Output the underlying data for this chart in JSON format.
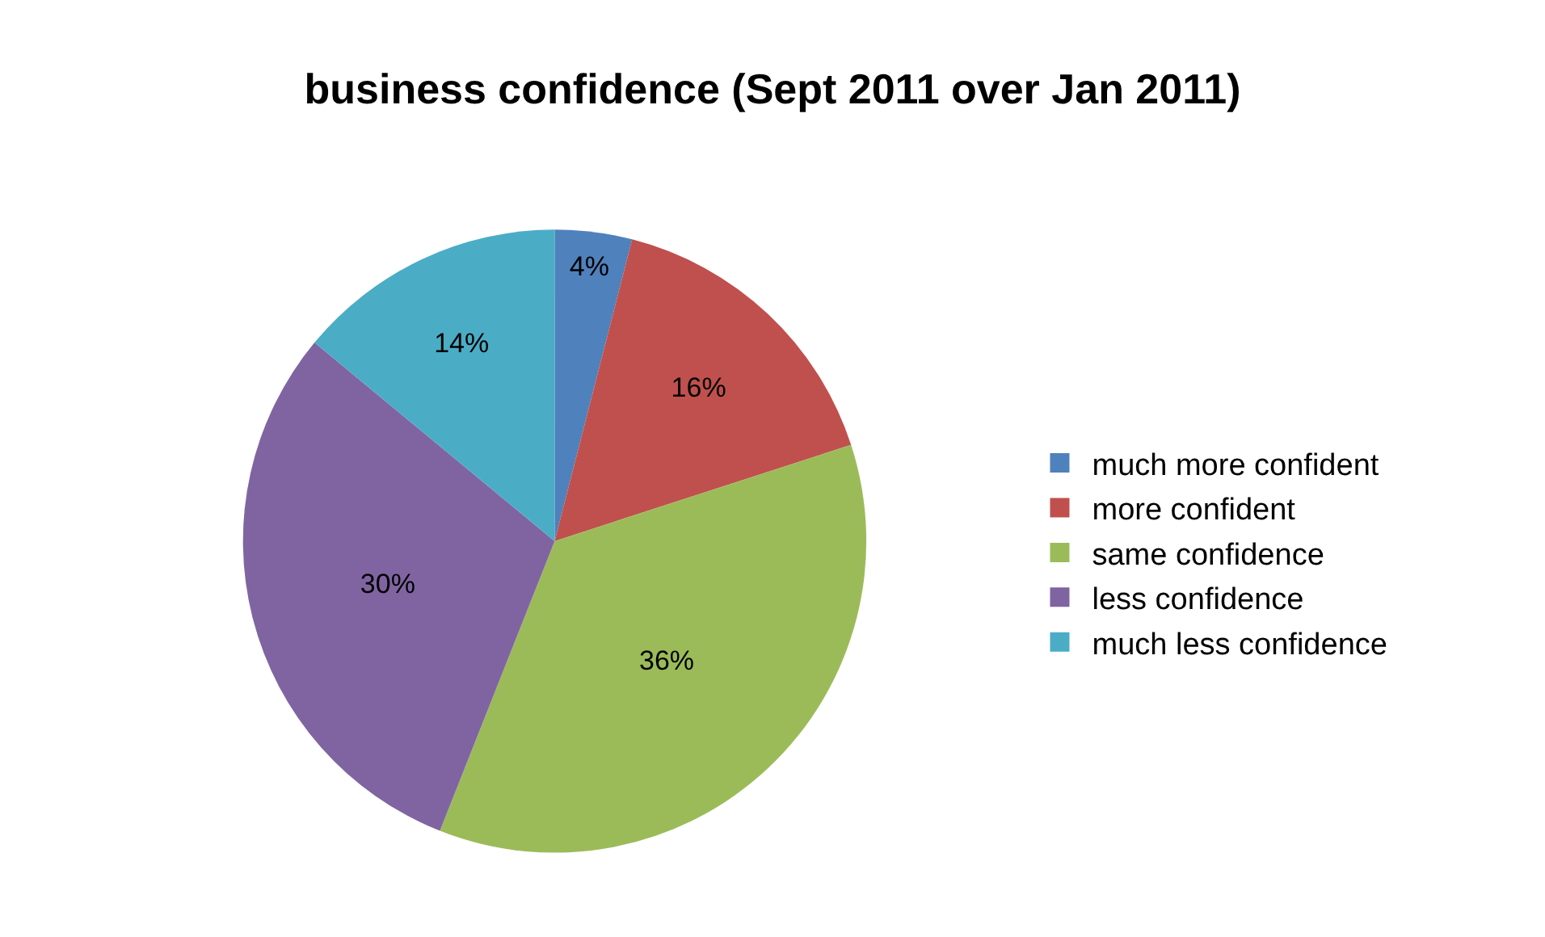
{
  "chart_data": {
    "type": "pie",
    "title": "business confidence (Sept 2011 over Jan 2011)",
    "categories": [
      "much more confident",
      "more confident",
      "same confidence",
      "less confidence",
      "much less confidence"
    ],
    "values": [
      4,
      16,
      36,
      30,
      14
    ],
    "value_labels": [
      "4%",
      "16%",
      "36%",
      "30%",
      "14%"
    ],
    "colors": [
      "#4f81bd",
      "#c0504d",
      "#9bbb59",
      "#8064a2",
      "#4bacc6"
    ],
    "legend": "right"
  }
}
